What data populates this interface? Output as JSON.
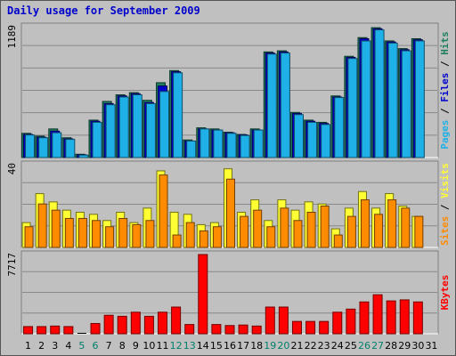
{
  "title": "Daily usage for September 2009",
  "colors": {
    "frame": "#888888",
    "plot_bg": "#c0c0c0",
    "grid": "#888888",
    "title": "#0000cc",
    "hits": "#1f7f5f",
    "files": "#0000cc",
    "pages": "#20b0e8",
    "visits": "#ffff33",
    "sites": "#ff8c00",
    "kbytes": "#ff0000",
    "weekend": "#00806b",
    "weekday": "#000000"
  },
  "chart_data": [
    {
      "type": "bar",
      "name": "hits-files-pages",
      "ymax_label": "1189",
      "ylim": [
        0,
        1189
      ],
      "right_label": [
        {
          "text": "Pages",
          "color": "#20b0e8"
        },
        {
          "text": " / ",
          "color": "#000000"
        },
        {
          "text": "Files",
          "color": "#0000cc"
        },
        {
          "text": " / ",
          "color": "#000000"
        },
        {
          "text": "Hits",
          "color": "#1f7f5f"
        }
      ],
      "categories": [
        "1",
        "2",
        "3",
        "4",
        "5",
        "6",
        "7",
        "8",
        "9",
        "10",
        "11",
        "12",
        "13",
        "14",
        "15",
        "16",
        "17",
        "18",
        "19",
        "20",
        "21",
        "22",
        "23",
        "24",
        "25",
        "26",
        "27",
        "28",
        "29",
        "30"
      ],
      "series": [
        {
          "name": "Hits",
          "values": [
            220,
            195,
            260,
            180,
            30,
            340,
            510,
            570,
            590,
            520,
            680,
            790,
            160,
            270,
            260,
            230,
            210,
            260,
            960,
            970,
            410,
            340,
            320,
            560,
            920,
            1090,
            1180,
            1060,
            990,
            1080
          ]
        },
        {
          "name": "Files",
          "values": [
            210,
            185,
            240,
            170,
            25,
            330,
            490,
            560,
            580,
            500,
            650,
            780,
            150,
            260,
            250,
            225,
            205,
            250,
            950,
            960,
            400,
            330,
            310,
            550,
            910,
            1080,
            1170,
            1050,
            980,
            1070
          ]
        },
        {
          "name": "Pages",
          "values": [
            205,
            180,
            225,
            165,
            22,
            320,
            480,
            550,
            570,
            490,
            600,
            770,
            150,
            260,
            250,
            220,
            200,
            250,
            940,
            950,
            390,
            320,
            300,
            545,
            900,
            1060,
            1160,
            1040,
            970,
            1060
          ]
        }
      ]
    },
    {
      "type": "bar",
      "name": "visits-sites",
      "ymax_label": "40",
      "ylim": [
        0,
        40
      ],
      "right_label": [
        {
          "text": "Sites",
          "color": "#ff8c00"
        },
        {
          "text": " / ",
          "color": "#000000"
        },
        {
          "text": "Visits",
          "color": "#ffff33"
        }
      ],
      "categories": [
        "1",
        "2",
        "3",
        "4",
        "5",
        "6",
        "7",
        "8",
        "9",
        "10",
        "11",
        "12",
        "13",
        "14",
        "15",
        "16",
        "17",
        "18",
        "19",
        "20",
        "21",
        "22",
        "23",
        "24",
        "25",
        "26",
        "27",
        "28",
        "29",
        "30"
      ],
      "series": [
        {
          "name": "Visits",
          "values": [
            12,
            26,
            22,
            18,
            17,
            16,
            13,
            17,
            12,
            19,
            37,
            17,
            16,
            11,
            12,
            38,
            17,
            23,
            13,
            23,
            18,
            22,
            21,
            9,
            19,
            27,
            19,
            26,
            20,
            15
          ]
        },
        {
          "name": "Sites",
          "values": [
            10,
            21,
            18,
            14,
            14,
            13,
            10,
            14,
            11,
            13,
            35,
            6,
            12,
            8,
            10,
            33,
            15,
            18,
            10,
            19,
            13,
            17,
            20,
            6,
            15,
            23,
            16,
            23,
            19,
            15
          ]
        }
      ]
    },
    {
      "type": "bar",
      "name": "kbytes",
      "ymax_label": "7717",
      "ylim": [
        0,
        7717
      ],
      "right_label": [
        {
          "text": "KBytes",
          "color": "#ff0000"
        }
      ],
      "categories": [
        "1",
        "2",
        "3",
        "4",
        "5",
        "6",
        "7",
        "8",
        "9",
        "10",
        "11",
        "12",
        "13",
        "14",
        "15",
        "16",
        "17",
        "18",
        "19",
        "20",
        "21",
        "22",
        "23",
        "24",
        "25",
        "26",
        "27",
        "28",
        "29",
        "30"
      ],
      "series": [
        {
          "name": "KBytes",
          "values": [
            700,
            700,
            750,
            700,
            0,
            1000,
            1800,
            1700,
            2100,
            1700,
            2100,
            2600,
            900,
            7717,
            900,
            800,
            850,
            750,
            2600,
            2600,
            1200,
            1200,
            1200,
            2100,
            2400,
            3100,
            3800,
            3200,
            3300,
            3100
          ]
        }
      ]
    }
  ],
  "x_axis": {
    "labels": [
      "1",
      "2",
      "3",
      "4",
      "5",
      "6",
      "7",
      "8",
      "9",
      "10",
      "11",
      "12",
      "13",
      "14",
      "15",
      "16",
      "17",
      "18",
      "19",
      "20",
      "21",
      "22",
      "23",
      "24",
      "25",
      "26",
      "27",
      "28",
      "29",
      "30",
      "31"
    ],
    "weekend": [
      false,
      false,
      false,
      false,
      true,
      true,
      false,
      false,
      false,
      false,
      false,
      true,
      true,
      false,
      false,
      false,
      false,
      false,
      true,
      true,
      false,
      false,
      false,
      false,
      false,
      true,
      true,
      false,
      false,
      false,
      false
    ]
  }
}
